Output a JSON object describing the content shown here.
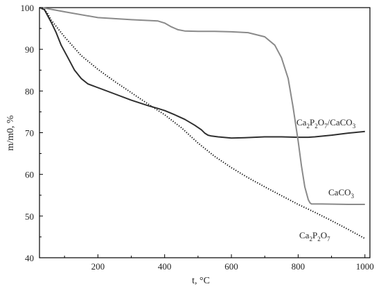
{
  "chart_data": {
    "type": "line",
    "xlabel": "t, °C",
    "ylabel": "m/m0, %",
    "xlim": [
      25,
      1015
    ],
    "ylim": [
      40,
      100
    ],
    "x_ticks": [
      200,
      400,
      600,
      800,
      1000
    ],
    "y_ticks": [
      40,
      50,
      60,
      70,
      80,
      90,
      100
    ],
    "grid": false,
    "legend": "none",
    "series": [
      {
        "name": "Ca2P2O7/CaCO3",
        "color": "#2f2f2f",
        "style": "solid",
        "x": [
          25,
          40,
          50,
          60,
          75,
          90,
          110,
          130,
          150,
          170,
          200,
          250,
          300,
          350,
          380,
          400,
          430,
          460,
          490,
          510,
          520,
          530,
          540,
          560,
          600,
          640,
          700,
          750,
          800,
          830,
          850,
          900,
          950,
          1000
        ],
        "y": [
          100,
          99.5,
          98,
          96.5,
          94,
          91,
          88,
          85,
          83,
          81.7,
          80.8,
          79.3,
          77.8,
          76.5,
          75.8,
          75.3,
          74.3,
          73.2,
          71.8,
          70.7,
          69.9,
          69.4,
          69.2,
          69.0,
          68.7,
          68.8,
          69.0,
          69.0,
          68.9,
          68.9,
          69.0,
          69.4,
          69.9,
          70.3
        ]
      },
      {
        "name": "CaCO3",
        "color": "#8a8a8a",
        "style": "solid",
        "x": [
          25,
          40,
          100,
          200,
          300,
          380,
          400,
          420,
          440,
          460,
          500,
          550,
          600,
          650,
          700,
          730,
          750,
          770,
          785,
          800,
          810,
          820,
          830,
          835,
          840,
          870,
          950,
          1000
        ],
        "y": [
          100,
          99.9,
          99.0,
          97.6,
          97.1,
          96.8,
          96.3,
          95.4,
          94.7,
          94.4,
          94.3,
          94.3,
          94.2,
          94.0,
          93.0,
          91.0,
          88.0,
          83.0,
          76.0,
          68.0,
          62.0,
          57.0,
          54.0,
          53.2,
          52.9,
          52.9,
          52.8,
          52.8
        ]
      },
      {
        "name": "Ca2P2O7",
        "color": "#111111",
        "style": "dotted",
        "x": [
          25,
          40,
          50,
          60,
          80,
          100,
          150,
          200,
          250,
          300,
          350,
          400,
          450,
          500,
          550,
          600,
          650,
          700,
          750,
          800,
          850,
          900,
          950,
          1000
        ],
        "y": [
          100,
          99.5,
          98.5,
          97.0,
          95.0,
          93.0,
          88.5,
          85.2,
          82.3,
          79.6,
          76.9,
          74.3,
          71.2,
          67.5,
          64.3,
          61.6,
          59.2,
          57.0,
          54.9,
          52.8,
          50.9,
          48.9,
          46.8,
          44.6
        ]
      }
    ],
    "annotations": [
      {
        "base": "Ca",
        "sub1": "2",
        "mid": "P",
        "sub2": "2",
        "mid2": "O",
        "sub3": "7",
        "tail": "/CaCO",
        "sub4": "3"
      },
      {
        "base": "CaCO",
        "sub1": "3"
      },
      {
        "base": "Ca",
        "sub1": "2",
        "mid": "P",
        "sub2": "2",
        "mid2": "O",
        "sub3": "7"
      }
    ]
  }
}
